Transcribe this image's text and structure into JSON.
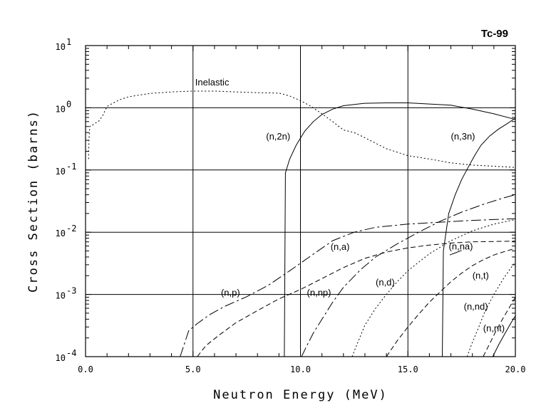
{
  "chart_data": {
    "type": "line",
    "title": "Tc-99",
    "xlabel": "Neutron Energy (MeV)",
    "ylabel": "Cross Section (barns)",
    "x_scale": "linear",
    "y_scale": "log",
    "xlim": [
      0,
      20
    ],
    "ylim": [
      0.0001,
      10
    ],
    "grid": true,
    "x_ticks": [
      0,
      5,
      10,
      15,
      20
    ],
    "x_tick_labels": [
      "0.0",
      "5.0",
      "10.0",
      "15.0",
      "20.0"
    ],
    "y_ticks": [
      {
        "value": 10,
        "base": "10",
        "exp": "1"
      },
      {
        "value": 1,
        "base": "10",
        "exp": "0"
      },
      {
        "value": 0.1,
        "base": "10",
        "exp": "-1"
      },
      {
        "value": 0.01,
        "base": "10",
        "exp": "-2"
      },
      {
        "value": 0.001,
        "base": "10",
        "exp": "-3"
      },
      {
        "value": 0.0001,
        "base": "10",
        "exp": "-4"
      }
    ],
    "series": [
      {
        "name": "Inelastic",
        "dash": "2,3",
        "label_at": [
          5.1,
          2.3
        ],
        "x": [
          0.14,
          0.16,
          0.2,
          0.26,
          0.3,
          0.4,
          0.5,
          0.6,
          0.8,
          1.0,
          1.3,
          1.6,
          2.0,
          2.5,
          3.0,
          3.5,
          4.0,
          5.0,
          6.0,
          7.0,
          8.0,
          9.0,
          9.5,
          10.0,
          10.5,
          11.0,
          11.5,
          12.0,
          12.5,
          13.0,
          14.0,
          15.0,
          16.0,
          17.0,
          18.0,
          19.0,
          20.0
        ],
        "y": [
          0.15,
          0.3,
          0.5,
          0.52,
          0.52,
          0.55,
          0.58,
          0.6,
          0.75,
          1.05,
          1.2,
          1.35,
          1.5,
          1.6,
          1.7,
          1.75,
          1.8,
          1.85,
          1.85,
          1.8,
          1.75,
          1.72,
          1.55,
          1.3,
          1.05,
          0.8,
          0.6,
          0.44,
          0.4,
          0.33,
          0.22,
          0.17,
          0.15,
          0.13,
          0.12,
          0.115,
          0.11
        ]
      },
      {
        "name": "(n,2n)",
        "dash": "",
        "label_at": [
          8.4,
          0.31
        ],
        "x": [
          9.25,
          9.3,
          9.5,
          9.8,
          10.2,
          10.6,
          11.0,
          11.5,
          12.0,
          13.0,
          14.0,
          15.0,
          16.0,
          17.0,
          18.0,
          19.0,
          20.0
        ],
        "y": [
          0.0001,
          0.09,
          0.15,
          0.25,
          0.42,
          0.6,
          0.78,
          0.95,
          1.08,
          1.18,
          1.2,
          1.2,
          1.15,
          1.1,
          0.95,
          0.8,
          0.65
        ]
      },
      {
        "name": "(n,3n)",
        "dash": "",
        "label_at": [
          17.0,
          0.31
        ],
        "x": [
          16.6,
          16.65,
          16.9,
          17.2,
          17.5,
          17.8,
          18.1,
          18.4,
          18.8,
          19.2,
          19.6,
          20.0
        ],
        "y": [
          0.0001,
          0.005,
          0.02,
          0.04,
          0.07,
          0.11,
          0.17,
          0.25,
          0.35,
          0.45,
          0.55,
          0.68
        ]
      },
      {
        "name": "(n,p)",
        "dash": "14,4,3,4",
        "label_at": [
          6.3,
          0.00095
        ],
        "x": [
          4.4,
          4.8,
          5.2,
          5.8,
          6.5,
          7.5,
          8.5,
          9.5,
          10.5,
          11.5,
          12.5,
          13.5,
          15.0,
          16.5,
          18.0,
          20.0
        ],
        "y": [
          0.0001,
          0.00026,
          0.00034,
          0.00048,
          0.00065,
          0.00092,
          0.0014,
          0.0024,
          0.0042,
          0.0073,
          0.01,
          0.012,
          0.0135,
          0.0145,
          0.0155,
          0.0165
        ]
      },
      {
        "name": "(n,a)",
        "dash": "7,4",
        "label_at": [
          11.4,
          0.0052
        ],
        "x": [
          5.2,
          5.6,
          6.2,
          7.0,
          8.0,
          9.0,
          10.0,
          11.0,
          12.0,
          13.0,
          14.0,
          15.0,
          16.0,
          17.0,
          18.0,
          20.0
        ],
        "y": [
          0.0001,
          0.00015,
          0.00022,
          0.00035,
          0.00055,
          0.00085,
          0.0012,
          0.0018,
          0.0027,
          0.0038,
          0.0048,
          0.0056,
          0.0062,
          0.0067,
          0.007,
          0.0072
        ]
      },
      {
        "name": "(n,np)",
        "dash": "14,4,3,4",
        "label_at": [
          10.3,
          0.00095
        ],
        "x": [
          10.05,
          10.3,
          10.6,
          11.0,
          11.5,
          12.0,
          12.8,
          13.5,
          14.5,
          15.5,
          16.5,
          17.5,
          18.5,
          19.5,
          20.0
        ],
        "y": [
          0.0001,
          0.00015,
          0.00024,
          0.0004,
          0.00075,
          0.0013,
          0.0025,
          0.004,
          0.0065,
          0.01,
          0.015,
          0.021,
          0.028,
          0.036,
          0.04
        ]
      },
      {
        "name": "(n,d)",
        "dash": "2,3",
        "label_at": [
          13.5,
          0.0014
        ],
        "x": [
          12.4,
          12.7,
          13.0,
          13.5,
          14.0,
          14.5,
          15.0,
          15.5,
          16.0,
          17.0,
          18.0,
          19.0,
          20.0
        ],
        "y": [
          0.0001,
          0.00018,
          0.00032,
          0.0006,
          0.001,
          0.0016,
          0.0024,
          0.0033,
          0.0045,
          0.0073,
          0.0105,
          0.0135,
          0.016
        ]
      },
      {
        "name": "(n,na)",
        "dash": "",
        "label_at": [
          16.9,
          0.0053
        ],
        "x": [
          16.95,
          17.5
        ],
        "y": [
          0.0043,
          0.0051
        ]
      },
      {
        "name": "(n,na)-curve",
        "dash": "7,4",
        "label_at": null,
        "x": [
          14.0,
          14.5,
          15.0,
          15.5,
          16.0,
          16.5,
          17.0,
          17.5,
          18.0,
          18.5,
          19.0,
          19.5,
          20.0
        ],
        "y": [
          0.0001,
          0.00018,
          0.0003,
          0.00048,
          0.00075,
          0.0011,
          0.0016,
          0.0022,
          0.0029,
          0.0036,
          0.0043,
          0.0049,
          0.0055
        ]
      },
      {
        "name": "(n,t)",
        "dash": "2,3",
        "label_at": [
          18.0,
          0.0018
        ],
        "x": [
          17.75,
          18.0,
          18.3,
          18.6,
          19.0,
          19.4,
          19.8,
          20.0
        ],
        "y": [
          0.0001,
          0.00017,
          0.0003,
          0.00055,
          0.001,
          0.0017,
          0.0027,
          0.0033
        ]
      },
      {
        "name": "(n,nd)",
        "dash": "7,4",
        "label_at": [
          17.6,
          0.00057
        ],
        "x": [
          18.5,
          18.8,
          19.1,
          19.4,
          19.7,
          20.0
        ],
        "y": [
          0.0001,
          0.00016,
          0.00026,
          0.0004,
          0.0006,
          0.0009
        ]
      },
      {
        "name": "(n,nt)",
        "dash": "",
        "label_at": [
          18.5,
          0.000255
        ],
        "x": [
          18.95,
          19.2,
          19.5,
          19.8,
          20.0
        ],
        "y": [
          0.0001,
          0.00015,
          0.00023,
          0.00035,
          0.00045
        ]
      }
    ]
  }
}
